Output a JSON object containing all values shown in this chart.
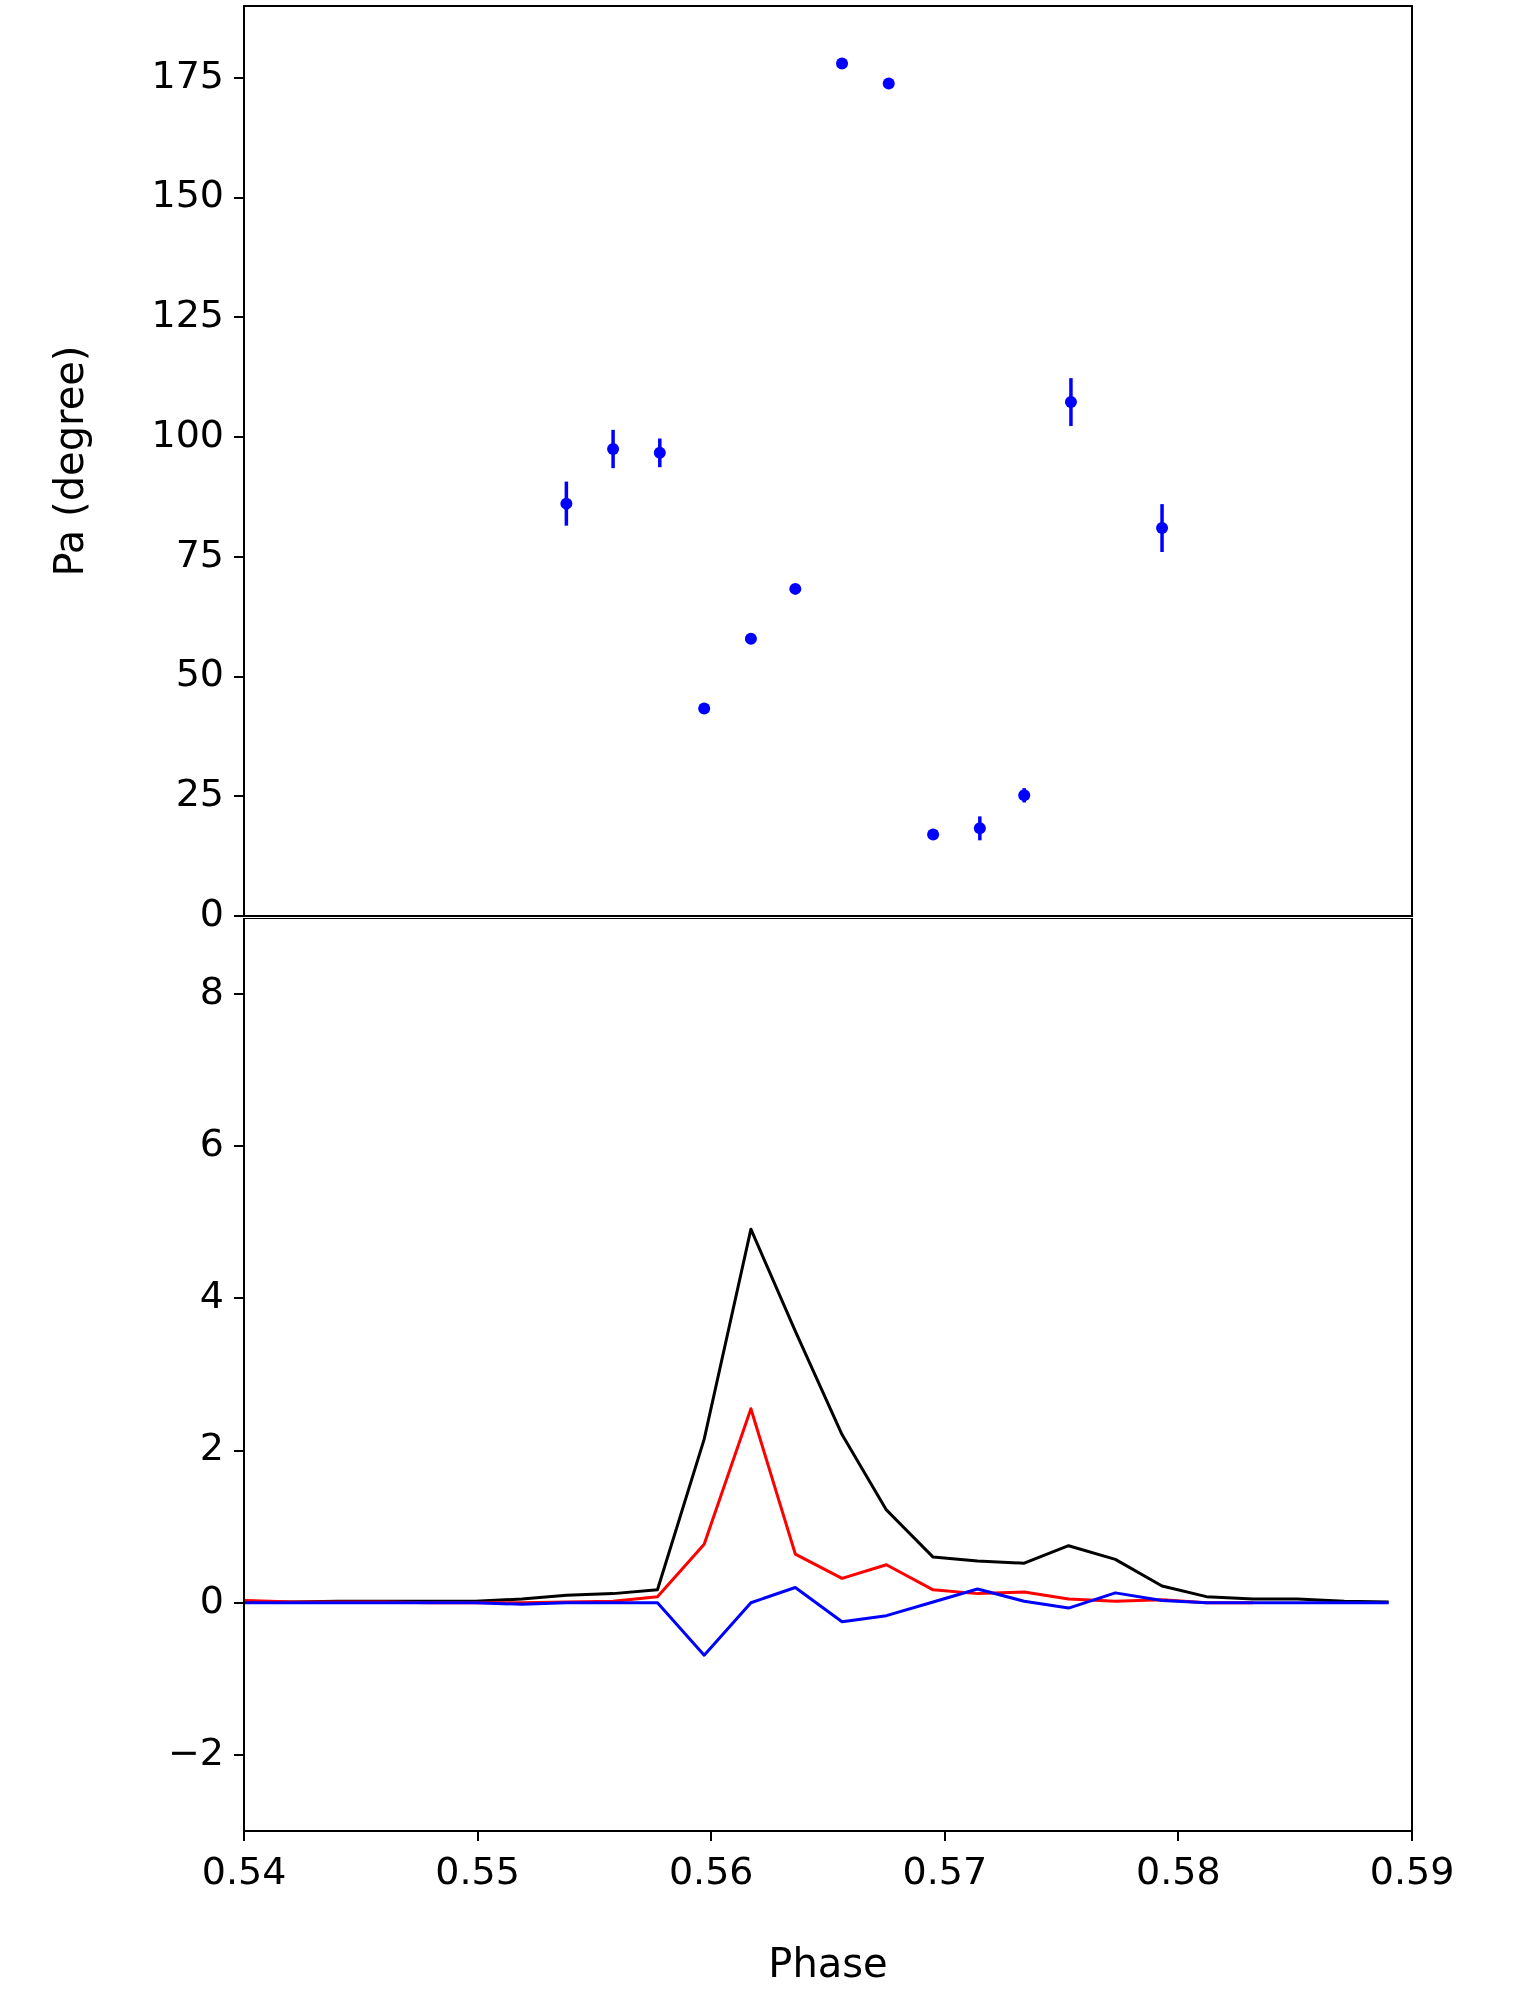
{
  "chart_data": [
    {
      "type": "scatter",
      "ylabel": "Pa (degree)",
      "xlim": [
        0.54,
        0.59
      ],
      "ylim": [
        0,
        190
      ],
      "yticks": [
        0,
        25,
        50,
        75,
        100,
        125,
        150,
        175
      ],
      "tick_labels": "y",
      "marker": "circle",
      "series": [
        {
          "color": "#0000ff",
          "x": [
            0.5538,
            0.5558,
            0.5578,
            0.5597,
            0.5617,
            0.5636,
            0.5656,
            0.5676,
            0.5695,
            0.5715,
            0.5734,
            0.5754,
            0.5793
          ],
          "values": [
            86.1,
            97.5,
            96.7,
            43.3,
            57.9,
            68.3,
            178,
            173.8,
            17.0,
            18.3,
            25.2,
            107.3,
            81
          ],
          "errors": [
            4.6,
            4,
            3,
            null,
            null,
            null,
            null,
            null,
            1,
            2.5,
            1.5,
            5,
            5
          ]
        }
      ]
    },
    {
      "type": "line",
      "xlabel": "Phase",
      "xlim": [
        0.54,
        0.59
      ],
      "xticks": [
        0.54,
        0.55,
        0.56,
        0.57,
        0.58,
        0.59
      ],
      "ylim": [
        -3,
        9
      ],
      "yticks": [
        {
          "value": -2,
          "label": "−2"
        },
        0,
        2,
        4,
        6,
        8
      ],
      "x": [
        0.54,
        0.5421,
        0.544,
        0.546,
        0.5479,
        0.5499,
        0.5519,
        0.5538,
        0.5558,
        0.5577,
        0.5597,
        0.5617,
        0.5636,
        0.5656,
        0.5675,
        0.5695,
        0.5714,
        0.5734,
        0.5753,
        0.5773,
        0.5793,
        0.5812,
        0.5832,
        0.5851,
        0.5871,
        0.589
      ],
      "series": [
        {
          "color": "#000000",
          "values": [
            0.01,
            0.01,
            0.02,
            0.02,
            0.02,
            0.02,
            0.05,
            0.1,
            0.12,
            0.17,
            2.15,
            4.91,
            3.57,
            2.21,
            1.22,
            0.6,
            0.55,
            0.52,
            0.75,
            0.57,
            0.22,
            0.08,
            0.05,
            0.05,
            0.02,
            0.01
          ]
        },
        {
          "color": "#ff0000",
          "values": [
            0.03,
            0.01,
            0.01,
            0.01,
            0.0,
            0.0,
            0.0,
            0.01,
            0.02,
            0.08,
            0.77,
            2.55,
            0.64,
            0.32,
            0.5,
            0.17,
            0.12,
            0.14,
            0.05,
            0.02,
            0.04,
            0.0,
            0.0,
            null,
            null,
            null
          ]
        },
        {
          "color": "#0000ff",
          "values": [
            0.0,
            0.0,
            0.0,
            0.0,
            0.0,
            0.0,
            -0.02,
            0.0,
            0.0,
            0.0,
            -0.69,
            0.0,
            0.2,
            -0.25,
            -0.17,
            0.01,
            0.18,
            0.02,
            -0.07,
            0.13,
            0.03,
            0.0,
            0.0,
            0.0,
            0.0,
            0.0
          ]
        }
      ]
    }
  ]
}
